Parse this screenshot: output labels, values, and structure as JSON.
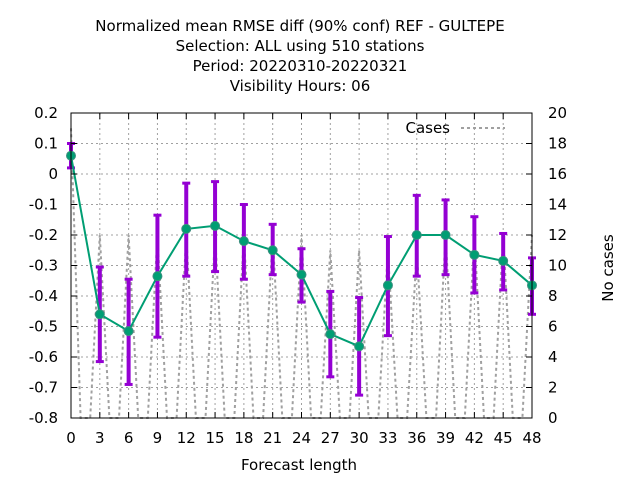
{
  "chart_data": {
    "type": "line",
    "title_lines": [
      "Normalized mean RMSE diff (90% conf) REF - GULTEPE",
      "Selection: ALL using   510 stations",
      "Period: 20220310-20220321",
      "Visibility   Hours:  06"
    ],
    "xlabel": "Forecast length",
    "ylabel_right": "No cases",
    "x": [
      0,
      3,
      6,
      9,
      12,
      15,
      18,
      21,
      24,
      27,
      30,
      33,
      36,
      39,
      42,
      45,
      48
    ],
    "x_ticks": [
      "0",
      "3",
      "6",
      "9",
      "12",
      "15",
      "18",
      "21",
      "24",
      "27",
      "30",
      "33",
      "36",
      "39",
      "42",
      "45",
      "48"
    ],
    "y_ticks": [
      "0.2",
      "0.1",
      "0",
      "-0.1",
      "-0.2",
      "-0.3",
      "-0.4",
      "-0.5",
      "-0.6",
      "-0.7",
      "-0.8"
    ],
    "y2_ticks": [
      "20",
      "18",
      "16",
      "14",
      "12",
      "10",
      "8",
      "6",
      "4",
      "2",
      "0"
    ],
    "xlim": [
      0,
      48
    ],
    "ylim": [
      -0.8,
      0.2
    ],
    "y2lim": [
      0,
      20
    ],
    "grid": true,
    "legend_position": "top-right",
    "series": [
      {
        "name": "",
        "kind": "mean-with-errorbars",
        "color": "#009e73",
        "errorbar_color": "#9400d3",
        "values": [
          0.06,
          -0.46,
          -0.515,
          -0.335,
          -0.18,
          -0.17,
          -0.22,
          -0.25,
          -0.33,
          -0.525,
          -0.565,
          -0.365,
          -0.2,
          -0.2,
          -0.265,
          -0.285,
          -0.365
        ],
        "lower": [
          0.02,
          -0.615,
          -0.69,
          -0.535,
          -0.335,
          -0.32,
          -0.345,
          -0.33,
          -0.42,
          -0.665,
          -0.725,
          -0.53,
          -0.335,
          -0.33,
          -0.39,
          -0.38,
          -0.46
        ],
        "upper": [
          0.1,
          -0.305,
          -0.345,
          -0.135,
          -0.03,
          -0.025,
          -0.1,
          -0.165,
          -0.245,
          -0.385,
          -0.405,
          -0.205,
          -0.07,
          -0.085,
          -0.14,
          -0.195,
          -0.275
        ]
      },
      {
        "name": "Cases",
        "kind": "cases-dashed",
        "axis": "right",
        "color": "#a0a0a0",
        "x": [
          0,
          1,
          2,
          3,
          4,
          5,
          6,
          7,
          8,
          9,
          10,
          11,
          12,
          13,
          14,
          15,
          16,
          17,
          18,
          19,
          20,
          21,
          22,
          23,
          24,
          25,
          26,
          27,
          28,
          29,
          30,
          31,
          32,
          33,
          34,
          35,
          36,
          37,
          38,
          39,
          40,
          41,
          42,
          43,
          44,
          45,
          46,
          47,
          48
        ],
        "values": [
          19,
          0,
          0,
          12,
          0,
          0,
          12,
          0,
          0,
          12,
          0,
          0,
          12,
          0,
          0,
          12,
          0,
          0,
          12,
          0,
          0,
          12,
          0,
          0,
          12,
          0,
          0,
          11,
          0,
          0,
          11,
          0,
          0,
          11,
          0,
          0,
          11,
          0,
          0,
          12,
          0,
          0,
          12,
          0,
          0,
          12,
          0,
          0,
          12
        ]
      }
    ]
  }
}
